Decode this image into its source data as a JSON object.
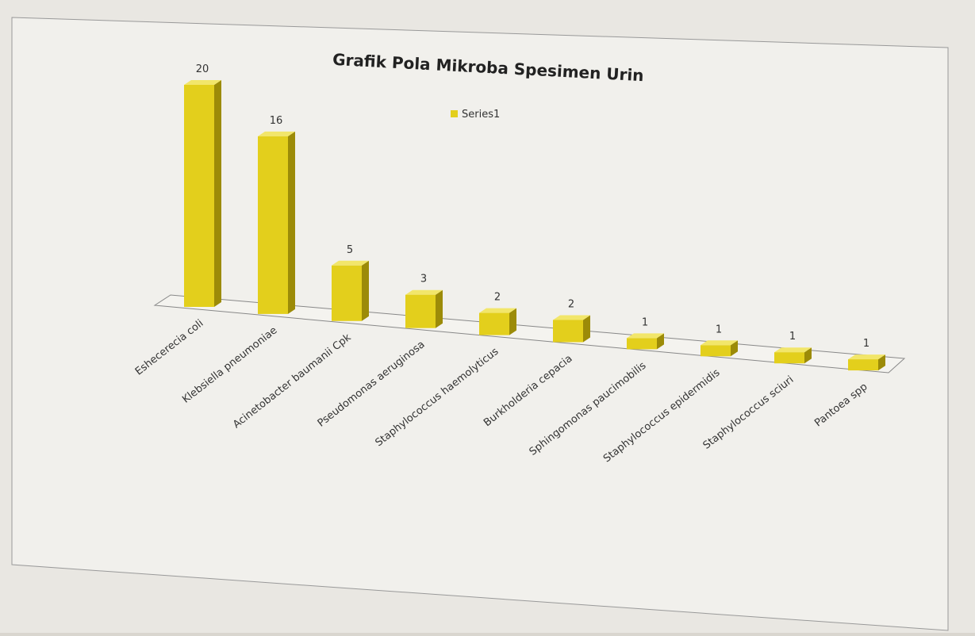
{
  "chart_data": {
    "type": "bar",
    "title": "Grafik Pola Mikroba Spesimen Urin",
    "categories": [
      "Eshecerecia coli",
      "Klebsiella pneumoniae",
      "Acinetobacter baumanii Cpk",
      "Pseudomonas aeruginosa",
      "Staphylococcus haemolyticus",
      "Burkholderia cepacia",
      "Sphingomonas paucimobilis",
      "Staphylococcus epidermidis",
      "Staphylococcus sciuri",
      "Pantoea spp"
    ],
    "series": [
      {
        "name": "Series1",
        "color": "#e3cf1c",
        "values": [
          20,
          16,
          5,
          3,
          2,
          2,
          1,
          1,
          1,
          1
        ]
      }
    ],
    "legend": "top"
  }
}
